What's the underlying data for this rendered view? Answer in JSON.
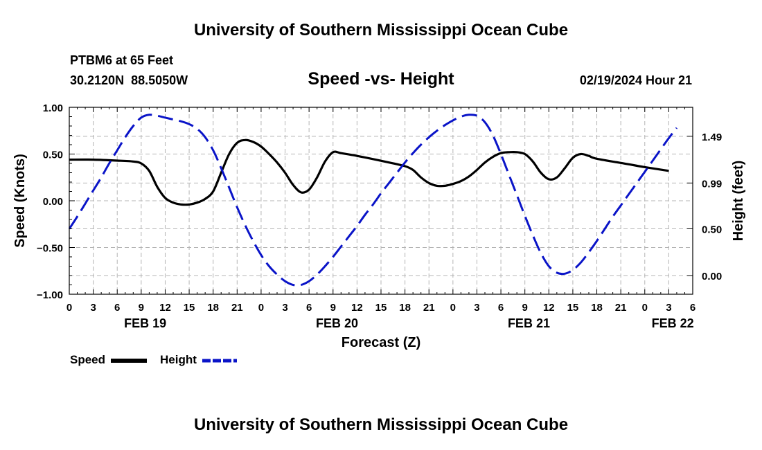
{
  "header": {
    "title": "University of Southern Mississippi Ocean Cube",
    "station": "PTBM6 at 65 Feet",
    "coords": "30.2120N  88.5050W",
    "subtitle": "Speed -vs- Height",
    "datetime": "02/19/2024 Hour 21"
  },
  "footer": {
    "title": "University of Southern Mississippi Ocean Cube"
  },
  "legend": {
    "speed_label": "Speed",
    "height_label": "Height"
  },
  "colors": {
    "speed": "#000000",
    "height": "#0a14c8",
    "grid": "#b4b4b4"
  },
  "chart_data": {
    "type": "line",
    "xlabel": "Forecast (Z)",
    "x_hours_from_start": {
      "min": 0,
      "max": 78,
      "tick_step": 3
    },
    "x_tick_labels": [
      "0",
      "3",
      "6",
      "9",
      "12",
      "15",
      "18",
      "21",
      "0",
      "3",
      "6",
      "9",
      "12",
      "15",
      "18",
      "21",
      "0",
      "3",
      "6",
      "9",
      "12",
      "15",
      "18",
      "21",
      "0",
      "3",
      "6"
    ],
    "date_labels": [
      {
        "label": "FEB 19",
        "hour": 9.5
      },
      {
        "label": "FEB 20",
        "hour": 33.5
      },
      {
        "label": "FEB 21",
        "hour": 57.5
      },
      {
        "label": "FEB 22",
        "hour": 75.5
      }
    ],
    "y_left": {
      "label": "Speed (Knots)",
      "range": [
        -1.0,
        1.0
      ],
      "ticks": [
        1.0,
        0.5,
        0.0,
        -0.5,
        -1.0
      ],
      "tick_labels": [
        "1.00",
        "0.50",
        "0.00",
        "−0.50",
        "−1.00"
      ]
    },
    "y_right": {
      "label": "Height (feet)",
      "range": [
        -0.2,
        1.8
      ],
      "ticks": [
        1.49,
        0.99,
        0.5,
        0.0
      ],
      "tick_labels": [
        "1.49",
        "0.99",
        "0.50",
        "0.00"
      ]
    },
    "series": [
      {
        "name": "Speed",
        "axis": "left",
        "style": "solid",
        "points": [
          [
            0,
            0.44
          ],
          [
            3,
            0.44
          ],
          [
            6,
            0.43
          ],
          [
            8,
            0.42
          ],
          [
            9,
            0.4
          ],
          [
            10,
            0.32
          ],
          [
            11,
            0.15
          ],
          [
            12,
            0.03
          ],
          [
            13,
            -0.02
          ],
          [
            14,
            -0.04
          ],
          [
            15,
            -0.04
          ],
          [
            16,
            -0.02
          ],
          [
            17,
            0.02
          ],
          [
            18,
            0.1
          ],
          [
            19,
            0.3
          ],
          [
            20,
            0.5
          ],
          [
            21,
            0.62
          ],
          [
            22,
            0.65
          ],
          [
            23,
            0.63
          ],
          [
            24,
            0.58
          ],
          [
            25,
            0.5
          ],
          [
            26,
            0.41
          ],
          [
            27,
            0.3
          ],
          [
            28,
            0.17
          ],
          [
            29,
            0.09
          ],
          [
            30,
            0.12
          ],
          [
            31,
            0.25
          ],
          [
            32,
            0.42
          ],
          [
            33,
            0.52
          ],
          [
            34,
            0.51
          ],
          [
            36,
            0.48
          ],
          [
            40,
            0.41
          ],
          [
            42,
            0.37
          ],
          [
            43,
            0.33
          ],
          [
            44,
            0.25
          ],
          [
            45,
            0.19
          ],
          [
            46,
            0.16
          ],
          [
            47,
            0.16
          ],
          [
            48,
            0.18
          ],
          [
            49,
            0.21
          ],
          [
            50,
            0.26
          ],
          [
            51,
            0.33
          ],
          [
            52,
            0.41
          ],
          [
            53,
            0.47
          ],
          [
            54,
            0.51
          ],
          [
            55,
            0.52
          ],
          [
            56,
            0.52
          ],
          [
            57,
            0.5
          ],
          [
            58,
            0.42
          ],
          [
            59,
            0.3
          ],
          [
            60,
            0.23
          ],
          [
            61,
            0.25
          ],
          [
            62,
            0.35
          ],
          [
            63,
            0.46
          ],
          [
            64,
            0.5
          ],
          [
            65,
            0.48
          ],
          [
            66,
            0.45
          ],
          [
            70,
            0.39
          ],
          [
            72,
            0.36
          ],
          [
            75,
            0.32
          ]
        ]
      },
      {
        "name": "Height",
        "axis": "right",
        "style": "dashed",
        "points": [
          [
            0,
            0.5
          ],
          [
            1,
            0.63
          ],
          [
            2,
            0.77
          ],
          [
            3,
            0.91
          ],
          [
            4,
            1.05
          ],
          [
            5,
            1.2
          ],
          [
            6,
            1.34
          ],
          [
            7,
            1.48
          ],
          [
            8,
            1.6
          ],
          [
            9,
            1.69
          ],
          [
            10,
            1.72
          ],
          [
            11,
            1.71
          ],
          [
            12,
            1.69
          ],
          [
            13,
            1.67
          ],
          [
            14,
            1.65
          ],
          [
            15,
            1.62
          ],
          [
            16,
            1.57
          ],
          [
            17,
            1.48
          ],
          [
            18,
            1.34
          ],
          [
            19,
            1.15
          ],
          [
            20,
            0.94
          ],
          [
            21,
            0.73
          ],
          [
            22,
            0.54
          ],
          [
            23,
            0.37
          ],
          [
            24,
            0.22
          ],
          [
            25,
            0.1
          ],
          [
            26,
            0.01
          ],
          [
            27,
            -0.06
          ],
          [
            28,
            -0.1
          ],
          [
            29,
            -0.1
          ],
          [
            30,
            -0.06
          ],
          [
            31,
            0.01
          ],
          [
            32,
            0.1
          ],
          [
            33,
            0.2
          ],
          [
            34,
            0.31
          ],
          [
            35,
            0.42
          ],
          [
            36,
            0.53
          ],
          [
            37,
            0.65
          ],
          [
            38,
            0.76
          ],
          [
            39,
            0.88
          ],
          [
            40,
            0.99
          ],
          [
            41,
            1.1
          ],
          [
            42,
            1.21
          ],
          [
            43,
            1.31
          ],
          [
            44,
            1.4
          ],
          [
            45,
            1.48
          ],
          [
            46,
            1.55
          ],
          [
            47,
            1.61
          ],
          [
            48,
            1.66
          ],
          [
            49,
            1.7
          ],
          [
            50,
            1.72
          ],
          [
            51,
            1.71
          ],
          [
            52,
            1.64
          ],
          [
            53,
            1.5
          ],
          [
            54,
            1.3
          ],
          [
            55,
            1.08
          ],
          [
            56,
            0.86
          ],
          [
            57,
            0.64
          ],
          [
            58,
            0.43
          ],
          [
            59,
            0.24
          ],
          [
            60,
            0.1
          ],
          [
            61,
            0.03
          ],
          [
            62,
            0.02
          ],
          [
            63,
            0.06
          ],
          [
            64,
            0.14
          ],
          [
            65,
            0.25
          ],
          [
            66,
            0.37
          ],
          [
            67,
            0.5
          ],
          [
            68,
            0.63
          ],
          [
            69,
            0.75
          ],
          [
            70,
            0.87
          ],
          [
            71,
            0.99
          ],
          [
            72,
            1.11
          ],
          [
            73,
            1.23
          ],
          [
            74,
            1.35
          ],
          [
            75,
            1.47
          ],
          [
            76,
            1.58
          ]
        ]
      }
    ]
  }
}
